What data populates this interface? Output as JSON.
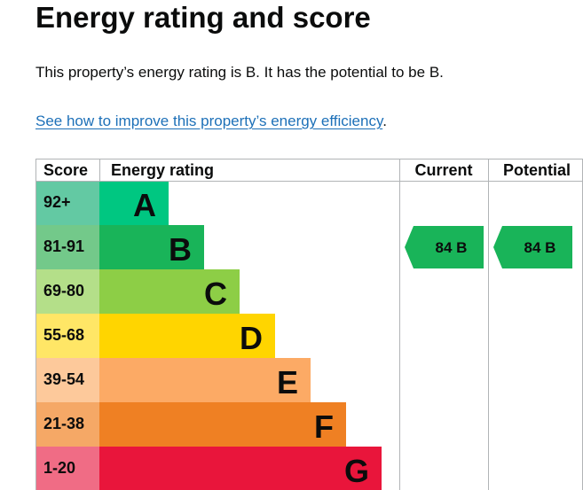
{
  "heading": "Energy rating and score",
  "summary": "This property’s energy rating is B. It has the potential to be B.",
  "improve_link": {
    "text": "See how to improve this property’s energy efficiency",
    "suffix": "."
  },
  "chart_data": {
    "type": "bar",
    "headers": {
      "score": "Score",
      "rating": "Energy rating",
      "current": "Current",
      "potential": "Potential"
    },
    "bands": [
      {
        "letter": "A",
        "range": "92+",
        "color": "#00c781",
        "score_bg": "#63c9a3"
      },
      {
        "letter": "B",
        "range": "81-91",
        "color": "#19b459",
        "score_bg": "#73c98a"
      },
      {
        "letter": "C",
        "range": "69-80",
        "color": "#8dce46",
        "score_bg": "#b4df89"
      },
      {
        "letter": "D",
        "range": "55-68",
        "color": "#ffd500",
        "score_bg": "#ffe666"
      },
      {
        "letter": "E",
        "range": "39-54",
        "color": "#fcaa65",
        "score_bg": "#fdc99b"
      },
      {
        "letter": "F",
        "range": "21-38",
        "color": "#ef8023",
        "score_bg": "#f5a866"
      },
      {
        "letter": "G",
        "range": "1-20",
        "color": "#e9153b",
        "score_bg": "#f06c85"
      }
    ],
    "current": {
      "score": 84,
      "band": "B",
      "label": "84  B"
    },
    "potential": {
      "score": 84,
      "band": "B",
      "label": "84  B"
    },
    "arrow_color": "#19b459"
  }
}
